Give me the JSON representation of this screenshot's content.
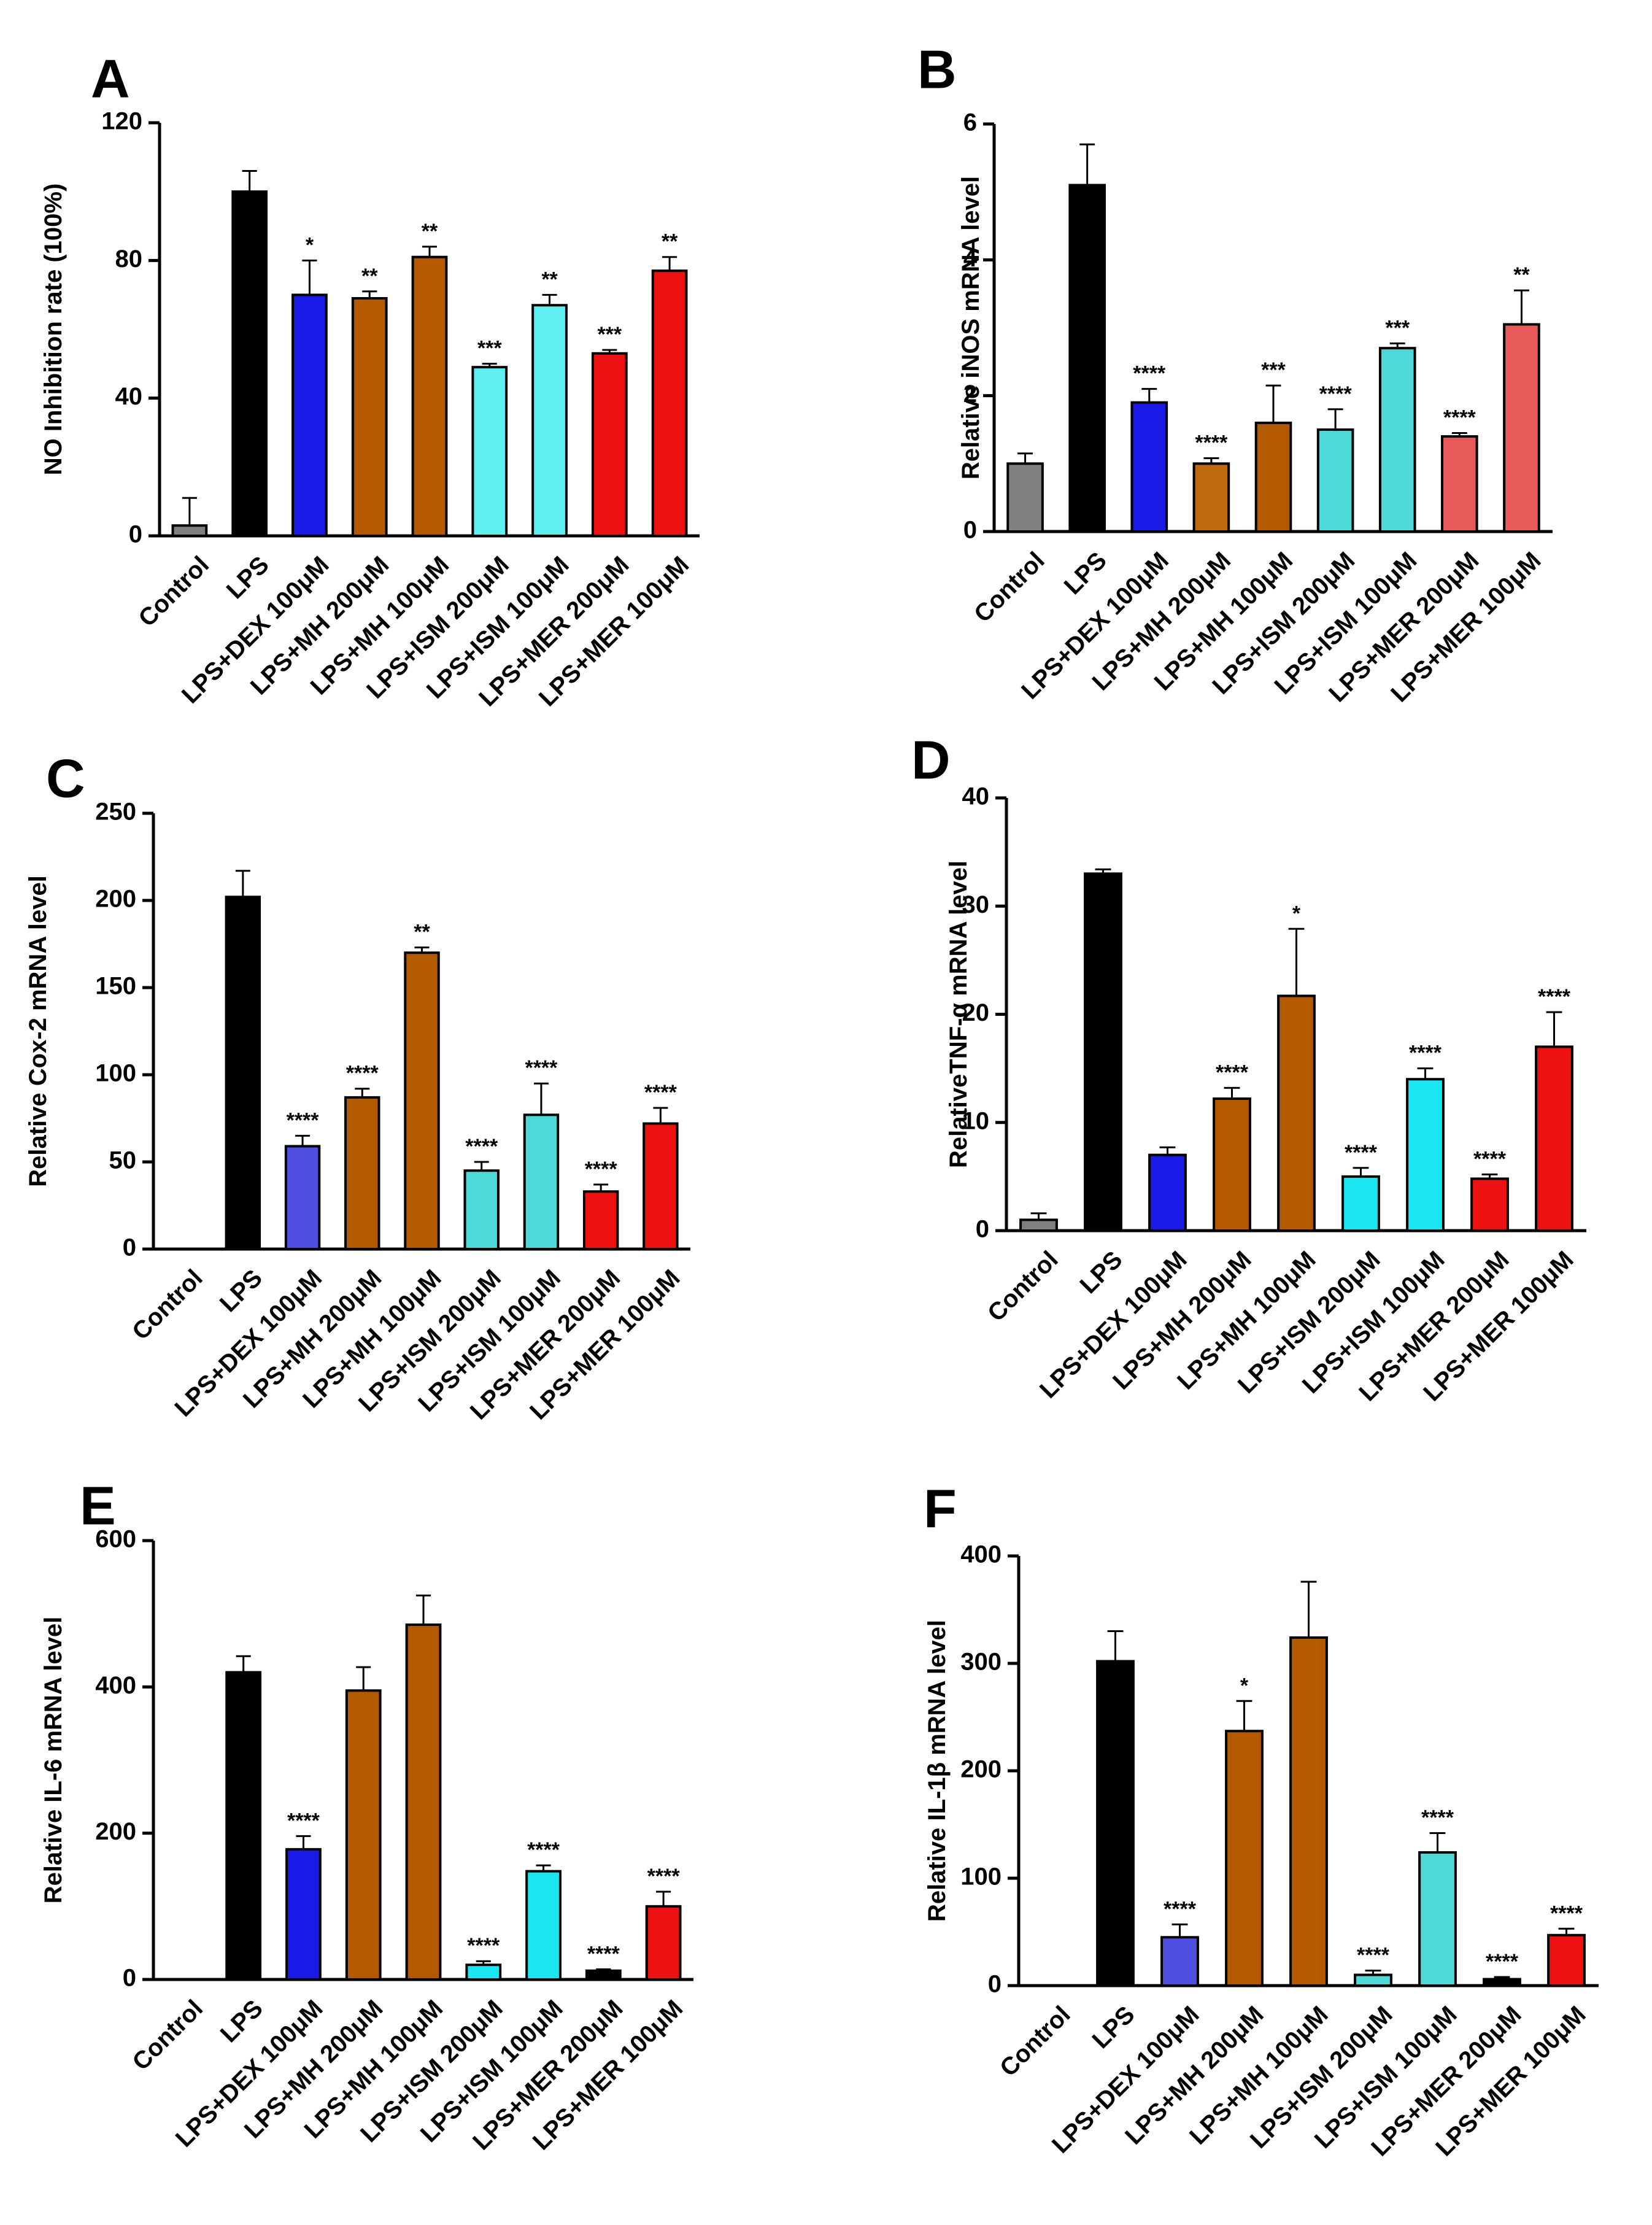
{
  "chart_data": [
    {
      "panel": "A",
      "type": "bar",
      "ylabel": "NO Inhibition rate (100%)",
      "ylim": [
        0,
        120
      ],
      "yticks": [
        0,
        40,
        80,
        120
      ],
      "categories": [
        "Control",
        "LPS",
        "LPS+DEX 100μM",
        "LPS+MH 200μM",
        "LPS+MH 100μM",
        "LPS+ISM 200μM",
        "LPS+ISM 100μM",
        "LPS+MER 200μM",
        "LPS+MER 100μM"
      ],
      "values": [
        3,
        100,
        70,
        69,
        81,
        49,
        67,
        53,
        77
      ],
      "errors": [
        8,
        6,
        10,
        2,
        3,
        1,
        3,
        1,
        4
      ],
      "significance": [
        "",
        "",
        "*",
        "**",
        "**",
        "***",
        "**",
        "***",
        "**"
      ],
      "colors": [
        "#808080",
        "#000000",
        "#1a1ae6",
        "#b35900",
        "#b35900",
        "#5ef0f0",
        "#5ef0f0",
        "#ee1111",
        "#ee1111"
      ]
    },
    {
      "panel": "B",
      "type": "bar",
      "ylabel": "Relative iNOS mRNA level",
      "ylim": [
        0,
        6
      ],
      "yticks": [
        0,
        2,
        4,
        6
      ],
      "categories": [
        "Control",
        "LPS",
        "LPS+DEX 100μM",
        "LPS+MH 200μM",
        "LPS+MH 100μM",
        "LPS+ISM 200μM",
        "LPS+ISM 100μM",
        "LPS+MER 200μM",
        "LPS+MER 100μM"
      ],
      "values": [
        1.0,
        5.1,
        1.9,
        1.0,
        1.6,
        1.5,
        2.7,
        1.4,
        3.05
      ],
      "errors": [
        0.15,
        0.6,
        0.2,
        0.08,
        0.55,
        0.3,
        0.07,
        0.05,
        0.5
      ],
      "significance": [
        "",
        "",
        "****",
        "****",
        "***",
        "****",
        "***",
        "****",
        "**"
      ],
      "colors": [
        "#808080",
        "#000000",
        "#1a1ae6",
        "#c06a10",
        "#b35900",
        "#4ed8d8",
        "#4ed8d8",
        "#e85a5a",
        "#e85a5a"
      ]
    },
    {
      "panel": "C",
      "type": "bar",
      "ylabel": "Relative Cox-2 mRNA level",
      "ylim": [
        0,
        250
      ],
      "yticks": [
        0,
        50,
        100,
        150,
        200,
        250
      ],
      "categories": [
        "Control",
        "LPS",
        "LPS+DEX 100μM",
        "LPS+MH 200μM",
        "LPS+MH 100μM",
        "LPS+ISM 200μM",
        "LPS+ISM 100μM",
        "LPS+MER 200μM",
        "LPS+MER 100μM"
      ],
      "values": [
        0,
        202,
        59,
        87,
        170,
        45,
        77,
        33,
        72
      ],
      "errors": [
        0,
        15,
        6,
        5,
        3,
        5,
        18,
        4,
        9
      ],
      "significance": [
        "",
        "",
        "****",
        "****",
        "**",
        "****",
        "****",
        "****",
        "****"
      ],
      "colors": [
        "#808080",
        "#000000",
        "#5050e0",
        "#b35900",
        "#b35900",
        "#4ed8d8",
        "#4ed8d8",
        "#ee1111",
        "#ee1111"
      ]
    },
    {
      "panel": "D",
      "type": "bar",
      "ylabel": "RelativeTNF-α mRNA level",
      "ylim": [
        0,
        40
      ],
      "yticks": [
        0,
        10,
        20,
        30,
        40
      ],
      "categories": [
        "Control",
        "LPS",
        "LPS+DEX 100μM",
        "LPS+MH 200μM",
        "LPS+MH 100μM",
        "LPS+ISM 200μM",
        "LPS+ISM 100μM",
        "LPS+MER 200μM",
        "LPS+MER 100μM"
      ],
      "values": [
        1,
        33,
        7,
        12.2,
        21.7,
        5,
        14,
        4.8,
        17
      ],
      "errors": [
        0.6,
        0.4,
        0.7,
        1.0,
        6.2,
        0.8,
        1.0,
        0.4,
        3.2
      ],
      "significance": [
        "",
        "",
        "",
        "****",
        "*",
        "****",
        "****",
        "****",
        "****"
      ],
      "colors": [
        "#808080",
        "#000000",
        "#1a1ae6",
        "#b35900",
        "#b35900",
        "#19e6f0",
        "#19e6f0",
        "#ee1111",
        "#ee1111"
      ]
    },
    {
      "panel": "E",
      "type": "bar",
      "ylabel": "Relative IL-6 mRNA level",
      "ylim": [
        0,
        600
      ],
      "yticks": [
        0,
        200,
        400,
        600
      ],
      "categories": [
        "Control",
        "LPS",
        "LPS+DEX 100μM",
        "LPS+MH 200μM",
        "LPS+MH 100μM",
        "LPS+ISM 200μM",
        "LPS+ISM 100μM",
        "LPS+MER 200μM",
        "LPS+MER 100μM"
      ],
      "values": [
        0,
        420,
        178,
        395,
        485,
        20,
        148,
        12,
        100
      ],
      "errors": [
        0,
        22,
        18,
        32,
        40,
        5,
        8,
        2,
        20
      ],
      "significance": [
        "",
        "",
        "****",
        "",
        "",
        "****",
        "****",
        "****",
        "****"
      ],
      "colors": [
        "#808080",
        "#000000",
        "#1a1ae6",
        "#b35900",
        "#b35900",
        "#19e6f0",
        "#19e6f0",
        "#000000",
        "#ee1111"
      ]
    },
    {
      "panel": "F",
      "type": "bar",
      "ylabel": "Relative IL-1β mRNA level",
      "ylim": [
        0,
        400
      ],
      "yticks": [
        0,
        100,
        200,
        300,
        400
      ],
      "categories": [
        "Control",
        "LPS",
        "LPS+DEX 100μM",
        "LPS+MH 200μM",
        "LPS+MH 100μM",
        "LPS+ISM 200μM",
        "LPS+ISM 100μM",
        "LPS+MER 200μM",
        "LPS+MER 100μM"
      ],
      "values": [
        0,
        302,
        45,
        237,
        324,
        10,
        124,
        6,
        47
      ],
      "errors": [
        0,
        28,
        12,
        28,
        52,
        4,
        18,
        2,
        6
      ],
      "significance": [
        "",
        "",
        "****",
        "*",
        "",
        "****",
        "****",
        "****",
        "****"
      ],
      "colors": [
        "#808080",
        "#000000",
        "#5050e0",
        "#b35900",
        "#b35900",
        "#4ed8d8",
        "#4ed8d8",
        "#000000",
        "#ee1111"
      ]
    }
  ]
}
